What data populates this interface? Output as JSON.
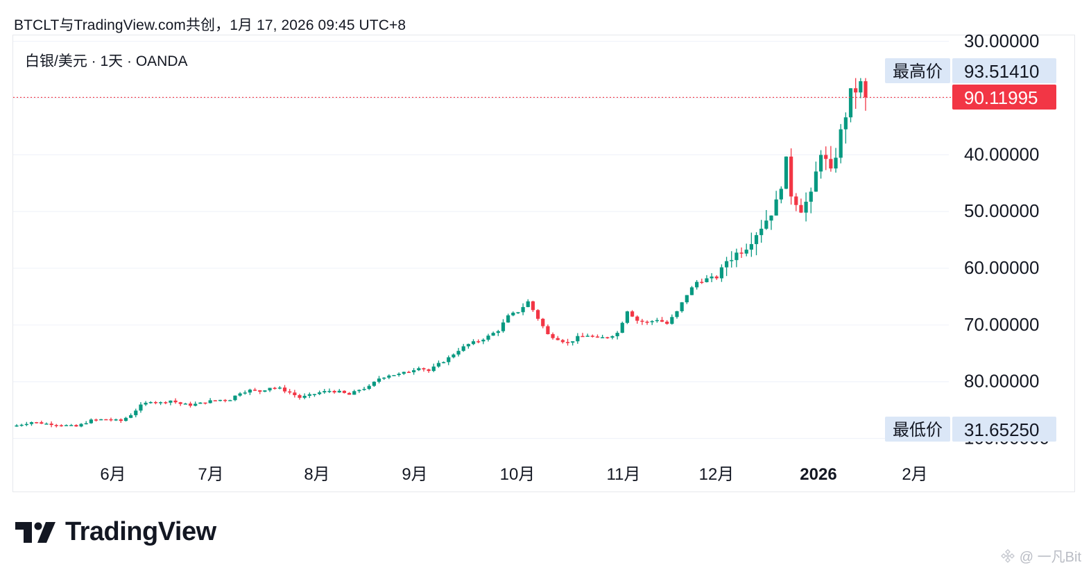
{
  "header": {
    "caption": "BTCLT与TradingView.com共创，1月 17, 2026 09:45 UTC+8"
  },
  "symbol": {
    "label": "白银/美元 · 1天 · OANDA"
  },
  "price_axis": {
    "ticks": [
      "100.00000",
      "80.00000",
      "70.00000",
      "60.00000",
      "50.00000",
      "40.00000",
      "30.00000"
    ],
    "high_label": "最高价",
    "high_value": "93.51410",
    "low_label": "最低价",
    "low_value": "31.65250",
    "last_value": "90.11995"
  },
  "time_axis": {
    "ticks": [
      "6月",
      "7月",
      "8月",
      "9月",
      "10月",
      "11月",
      "12月",
      "2026",
      "2月"
    ]
  },
  "brand": {
    "name": "TradingView",
    "logo": "tradingview-logo"
  },
  "watermark": {
    "text": "@ 一凡Bit"
  },
  "colors": {
    "up": "#089981",
    "down": "#f23645",
    "grid": "#f0f3fa",
    "high_low_bg": "#dbe7f7"
  },
  "chart_data": {
    "type": "candlestick",
    "symbol": "白银/美元",
    "interval": "1天",
    "source": "OANDA",
    "ylim": [
      30,
      100
    ],
    "y_ticks": [
      30,
      40,
      50,
      60,
      70,
      80,
      100
    ],
    "x_ticks": [
      "6月",
      "7月",
      "8月",
      "9月",
      "10月",
      "11月",
      "12月",
      "2026",
      "2月"
    ],
    "highest": 93.5141,
    "lowest": 31.6525,
    "last": 90.11995,
    "close_path": [
      [
        0,
        32.3
      ],
      [
        3,
        32.9
      ],
      [
        6,
        32.6
      ],
      [
        9,
        32.4
      ],
      [
        12,
        32.1
      ],
      [
        15,
        33.2
      ],
      [
        18,
        33.4
      ],
      [
        21,
        33.1
      ],
      [
        23,
        34.2
      ],
      [
        25,
        35.8
      ],
      [
        27,
        36.6
      ],
      [
        29,
        36.3
      ],
      [
        31,
        36.7
      ],
      [
        33,
        36.1
      ],
      [
        35,
        35.9
      ],
      [
        37,
        36.2
      ],
      [
        39,
        36.6
      ],
      [
        41,
        36.8
      ],
      [
        43,
        36.9
      ],
      [
        45,
        38.1
      ],
      [
        47,
        38.5
      ],
      [
        49,
        38.3
      ],
      [
        51,
        39.0
      ],
      [
        53,
        38.8
      ],
      [
        55,
        38.1
      ],
      [
        57,
        37.2
      ],
      [
        59,
        37.6
      ],
      [
        61,
        38.1
      ],
      [
        63,
        38.4
      ],
      [
        65,
        38.2
      ],
      [
        67,
        37.7
      ],
      [
        69,
        38.6
      ],
      [
        71,
        39.1
      ],
      [
        73,
        40.6
      ],
      [
        75,
        41.2
      ],
      [
        77,
        41.3
      ],
      [
        79,
        41.8
      ],
      [
        81,
        42.6
      ],
      [
        83,
        41.9
      ],
      [
        85,
        43.1
      ],
      [
        87,
        44.2
      ],
      [
        89,
        45.6
      ],
      [
        91,
        46.6
      ],
      [
        93,
        47.2
      ],
      [
        95,
        48.0
      ],
      [
        97,
        49.1
      ],
      [
        99,
        51.5
      ],
      [
        101,
        52.4
      ],
      [
        103,
        54.1
      ],
      [
        105,
        51.2
      ],
      [
        107,
        48.3
      ],
      [
        109,
        47.6
      ],
      [
        111,
        46.8
      ],
      [
        113,
        47.8
      ],
      [
        115,
        48.2
      ],
      [
        117,
        47.6
      ],
      [
        119,
        47.9
      ],
      [
        121,
        48.6
      ],
      [
        123,
        52.6
      ],
      [
        125,
        50.8
      ],
      [
        127,
        50.4
      ],
      [
        129,
        51.0
      ],
      [
        131,
        50.2
      ],
      [
        133,
        52.3
      ],
      [
        135,
        55.4
      ],
      [
        137,
        57.6
      ],
      [
        139,
        58.1
      ],
      [
        141,
        58.4
      ],
      [
        143,
        61.4
      ],
      [
        145,
        62.6
      ],
      [
        147,
        64.0
      ],
      [
        149,
        66.3
      ],
      [
        151,
        68.6
      ],
      [
        153,
        71.4
      ],
      [
        155,
        78.6
      ],
      [
        156,
        73.2
      ],
      [
        158,
        70.6
      ],
      [
        160,
        72.6
      ],
      [
        162,
        80.8
      ],
      [
        164,
        76.6
      ],
      [
        166,
        83.8
      ],
      [
        168,
        90.6
      ],
      [
        170,
        92.3
      ],
      [
        171,
        90.12
      ]
    ]
  }
}
